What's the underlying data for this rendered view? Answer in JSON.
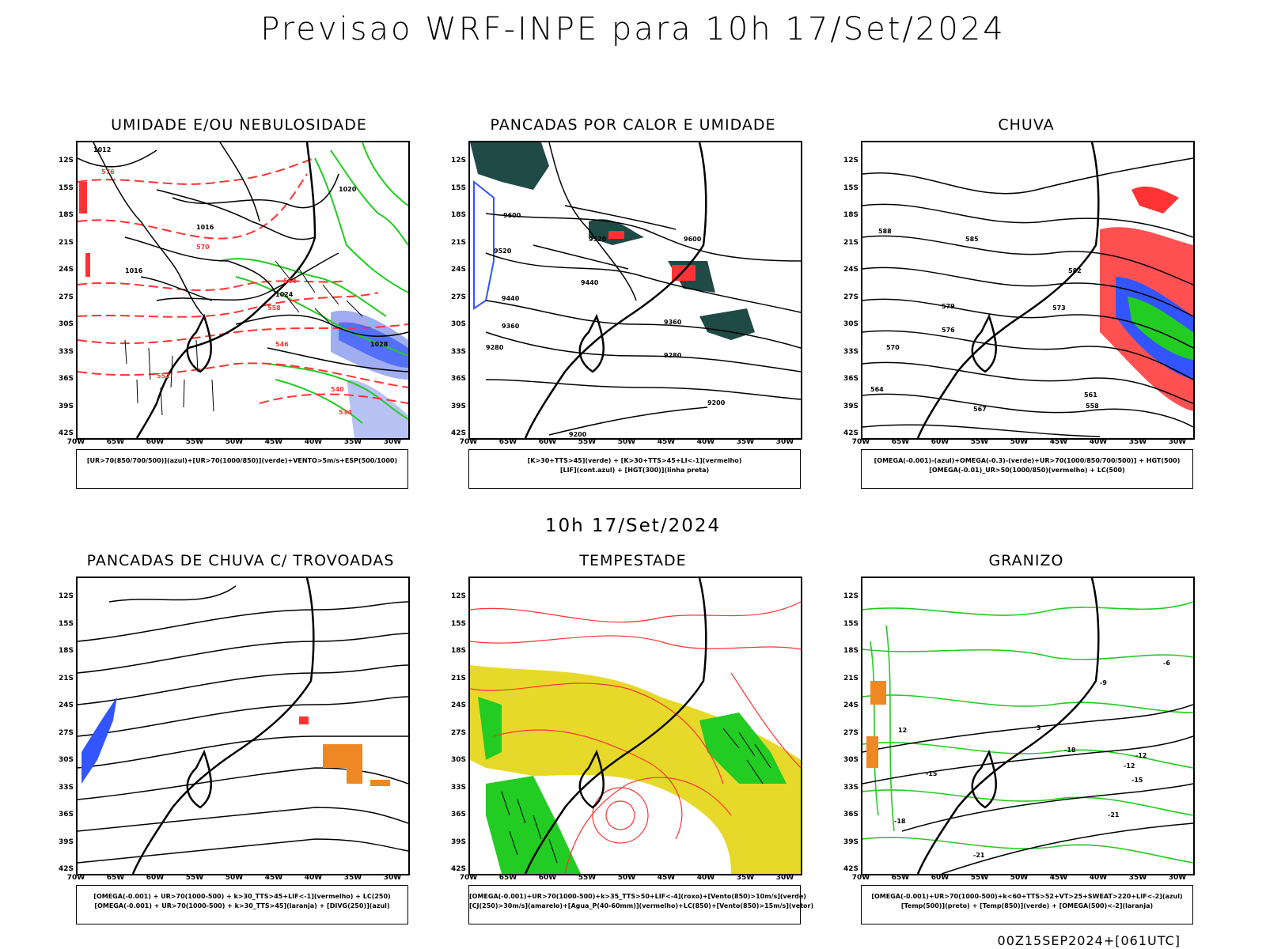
{
  "header": {
    "title": "Previsao WRF-INPE  para 10h 17/Set/2024"
  },
  "mid_date": "10h 17/Set/2024",
  "footer": "00Z15SEP2024+[061UTC]",
  "axes": {
    "lat_labels": [
      "12S",
      "15S",
      "18S",
      "21S",
      "24S",
      "27S",
      "30S",
      "33S",
      "36S",
      "39S",
      "42S"
    ],
    "lon_labels": [
      "70W",
      "65W",
      "60W",
      "55W",
      "50W",
      "45W",
      "40W",
      "35W",
      "30W"
    ]
  },
  "panels": [
    {
      "title": "UMIDADE E/OU NEBULOSIDADE",
      "legend": [
        "[UR>70(850/700/500)](azul)+[UR>70(1000/850)](verde)+VENTO>5m/s+ESP(500/1000)"
      ],
      "contour_labels": [
        "1012",
        "1016",
        "1020",
        "1024",
        "1016",
        "576",
        "570",
        "564",
        "558",
        "552",
        "546",
        "540",
        "534",
        "1028"
      ]
    },
    {
      "title": "PANCADAS POR CALOR E UMIDADE",
      "legend": [
        "[K>30+TTS>45](verde)  +  [K>30+TTS>45+LI<-1](vermelho)",
        "[LIF](cont.azul)  +  [HGT(300)](linha preta)"
      ],
      "contour_labels": [
        "9600",
        "9520",
        "9440",
        "9360",
        "9280",
        "9200",
        "9600",
        "9520",
        "9440",
        "9360",
        "9280",
        "9200"
      ]
    },
    {
      "title": "CHUVA",
      "legend": [
        "[OMEGA(-0.001)-(azul)+OMEGA(-0.3)-(verde)+UR>70(1000/850/700/500)]  +  HGT(500)",
        "[OMEGA(-0.01)_UR>50(1000/850)(vermelho)  +  LC(500)"
      ],
      "contour_labels": [
        "585",
        "582",
        "579",
        "576",
        "573",
        "570",
        "567",
        "564",
        "561",
        "558",
        "588"
      ]
    },
    {
      "title": "PANCADAS DE CHUVA C/ TROVOADAS",
      "legend": [
        "[OMEGA(-0.001)  +  UR>70(1000-500)  +  k>30_TTS>45+LIF<-1](vermelho)  +  LC(250)",
        "[OMEGA(-0.001)  +  UR>70(1000-500)  +  k>30_TTS>45](laranja)  +  [DIVG(250)](azul)"
      ],
      "contour_labels": []
    },
    {
      "title": "TEMPESTADE",
      "legend": [
        "[OMEGA(-0.001)+UR>70(1000-500)+k>35_TTS>50+LIF<-4](roxo)+[Vento(850)>10m/s](verde)",
        "[CJ(250)>30m/s](amarelo)+[Agua_P(40-60mm)](vermelho)+LC(850)+[Vento(850)>15m/s](vetor)"
      ],
      "contour_labels": []
    },
    {
      "title": "GRANIZO",
      "legend": [
        "[OMEGA(-0.001)+UR>70(1000-500)+k<60+TTS>52+VT>25+SWEAT>220+LIF<-2](azul)",
        "[Temp(500)](preto)  +  [Temp(850)](verde)  +  [OMEGA(500)<-2](laranja)"
      ],
      "contour_labels": [
        "-12",
        "-15",
        "-18",
        "-21",
        "-6",
        "-9",
        "3",
        "12",
        "-12",
        "-18",
        "-21",
        "-15"
      ]
    }
  ],
  "colors": {
    "red": "#ff3333",
    "green": "#22cc22",
    "blue": "#3355ff",
    "lightblue": "#8899ee",
    "darkteal": "#1f4a46",
    "yellow": "#e6d92a",
    "orange": "#ee8822",
    "black": "#000000"
  }
}
